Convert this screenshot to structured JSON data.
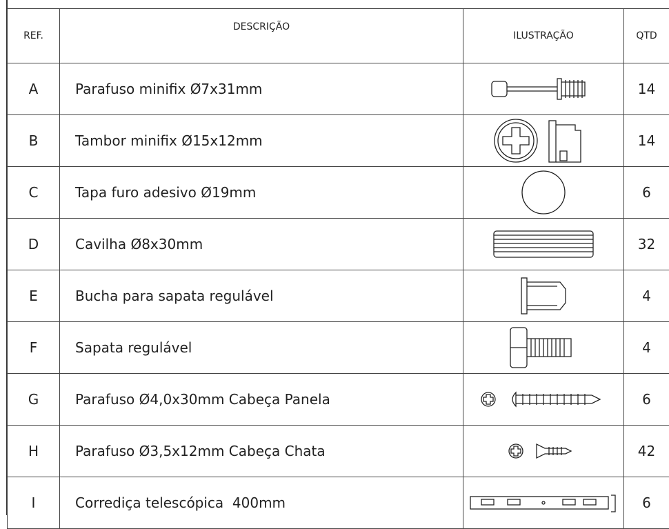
{
  "table": {
    "headers": [
      "REF.",
      "DESCRIÇÃO",
      "ILUSTRAÇÃO",
      "QTD"
    ],
    "rows": [
      [
        "A",
        "Parafuso minifix Ø7x31mm",
        14
      ],
      [
        "B",
        "Tambor minifix Ø15x12mm",
        14
      ],
      [
        "C",
        "Tapa furo adesivo Ø19mm",
        6
      ],
      [
        "D",
        "Cavilha Ø8x30mm",
        32
      ],
      [
        "E",
        "Bucha para sapata regulável",
        4
      ],
      [
        "F",
        "Sapata regulável",
        4
      ],
      [
        "G",
        "Parafuso Ø4,0x30mm Cabeça Panela",
        6
      ],
      [
        "H",
        "Parafuso Ø3,5x12mm Cabeça Chata",
        42
      ],
      [
        "I",
        "Corrediça telescópica  400mm",
        6
      ]
    ]
  }
}
